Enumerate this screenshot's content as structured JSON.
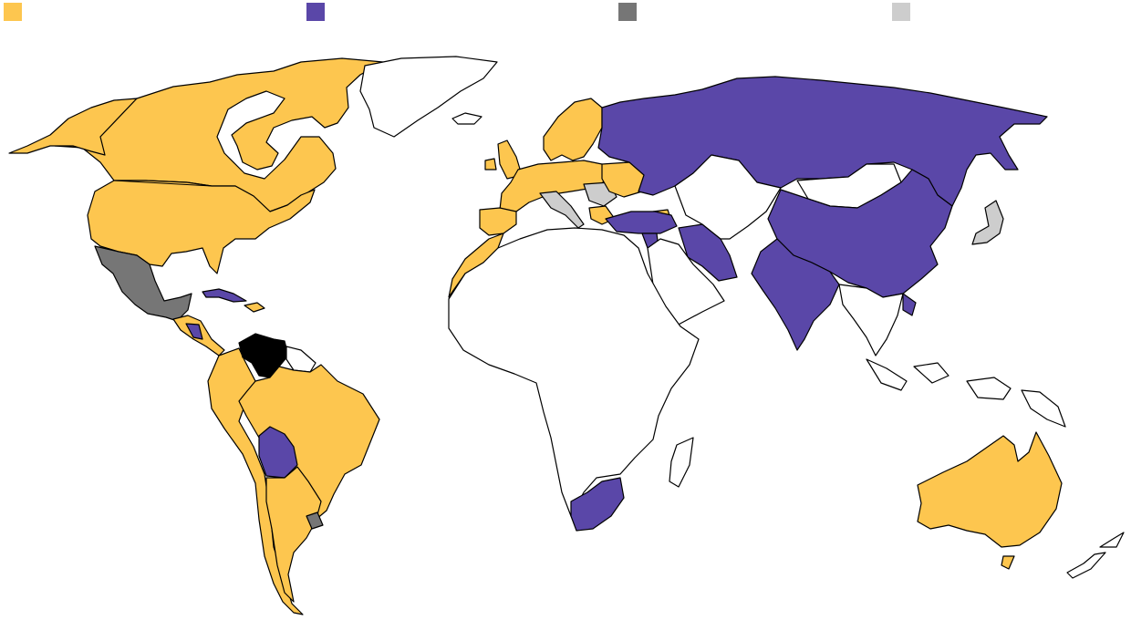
{
  "legend": {
    "items": [
      {
        "key": "yellow",
        "color": "#FDC64F",
        "label": ""
      },
      {
        "key": "purple",
        "color": "#5A47A8",
        "label": ""
      },
      {
        "key": "darkgray",
        "color": "#767676",
        "label": ""
      },
      {
        "key": "lightgray",
        "color": "#CDCDCD",
        "label": ""
      }
    ]
  },
  "colors": {
    "yellow": "#FDC64F",
    "purple": "#5A47A8",
    "darkgray": "#767676",
    "lightgray": "#CDCDCD",
    "black": "#000000",
    "none": "#FFFFFF"
  },
  "countries": [
    {
      "name": "canada",
      "category": "yellow"
    },
    {
      "name": "united-states",
      "category": "yellow"
    },
    {
      "name": "alaska",
      "category": "yellow"
    },
    {
      "name": "greenland",
      "category": "none"
    },
    {
      "name": "mexico",
      "category": "darkgray"
    },
    {
      "name": "cuba",
      "category": "purple"
    },
    {
      "name": "hispaniola",
      "category": "yellow"
    },
    {
      "name": "central-america",
      "category": "yellow"
    },
    {
      "name": "nicaragua",
      "category": "purple"
    },
    {
      "name": "venezuela",
      "category": "black"
    },
    {
      "name": "guianas",
      "category": "none"
    },
    {
      "name": "south-america-west",
      "category": "yellow"
    },
    {
      "name": "brazil",
      "category": "yellow"
    },
    {
      "name": "bolivia",
      "category": "purple"
    },
    {
      "name": "uruguay",
      "category": "darkgray"
    },
    {
      "name": "southern-cone",
      "category": "yellow"
    },
    {
      "name": "iceland",
      "category": "none"
    },
    {
      "name": "uk-ireland",
      "category": "yellow"
    },
    {
      "name": "scandinavia",
      "category": "yellow"
    },
    {
      "name": "western-europe",
      "category": "yellow"
    },
    {
      "name": "iberia",
      "category": "yellow"
    },
    {
      "name": "morocco-western-sahara",
      "category": "yellow"
    },
    {
      "name": "italy-balkans",
      "category": "lightgray"
    },
    {
      "name": "ukraine-romania",
      "category": "yellow"
    },
    {
      "name": "russia",
      "category": "purple"
    },
    {
      "name": "turkey",
      "category": "purple"
    },
    {
      "name": "syria",
      "category": "purple"
    },
    {
      "name": "iran",
      "category": "purple"
    },
    {
      "name": "central-asia",
      "category": "none"
    },
    {
      "name": "mongolia",
      "category": "none"
    },
    {
      "name": "china",
      "category": "purple"
    },
    {
      "name": "india",
      "category": "purple"
    },
    {
      "name": "vietnam-laos",
      "category": "purple"
    },
    {
      "name": "japan",
      "category": "lightgray"
    },
    {
      "name": "africa",
      "category": "none"
    },
    {
      "name": "south-africa",
      "category": "purple"
    },
    {
      "name": "madagascar",
      "category": "none"
    },
    {
      "name": "arabia",
      "category": "none"
    },
    {
      "name": "southeast-asia",
      "category": "none"
    },
    {
      "name": "indonesia-png",
      "category": "none"
    },
    {
      "name": "australia",
      "category": "yellow"
    },
    {
      "name": "tasmania",
      "category": "yellow"
    },
    {
      "name": "new-zealand",
      "category": "none"
    }
  ]
}
